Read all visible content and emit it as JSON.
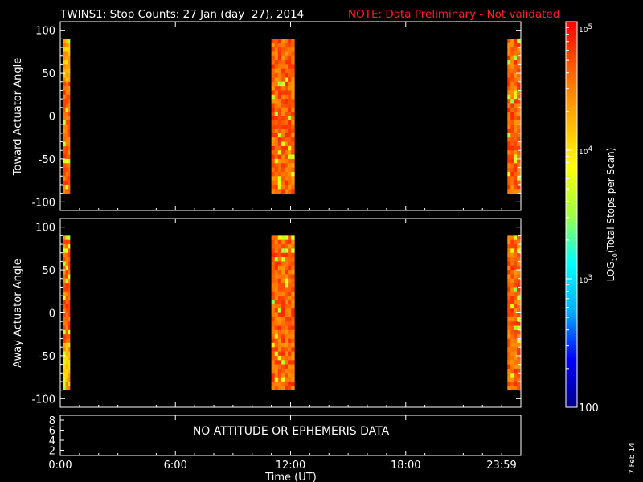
{
  "header": {
    "title": "TWINS1: Stop Counts: 27 Jan (day  27), 2014",
    "note": "NOTE: Data Preliminary - Not validated"
  },
  "side_date": "7 Feb 14",
  "message_panel": {
    "text": "NO ATTITUDE OR EPHEMERIS DATA",
    "y_ticks": [
      "8",
      "6",
      "4",
      "2"
    ]
  },
  "colors": {
    "note": "#ff2020",
    "background": "#000000",
    "axis": "#ffffff"
  },
  "colorbar": {
    "label": "LOG10(Total Stops per Scan)",
    "label_main": "LOG",
    "label_sub": "10",
    "label_rest": "(Total Stops per Scan)",
    "ticks": [
      {
        "value": 100,
        "text": "100"
      },
      {
        "value": 1000,
        "text": "10",
        "sup": "3"
      },
      {
        "value": 10000,
        "text": "10",
        "sup": "4"
      },
      {
        "value": 100000,
        "text": "10",
        "sup": "5"
      }
    ],
    "range": [
      100,
      100000
    ],
    "scale": "log",
    "colormap": [
      "#00008b",
      "#0000ff",
      "#00b0ff",
      "#00ffff",
      "#a0ff40",
      "#ffff00",
      "#ffb000",
      "#ff6000",
      "#ff0000"
    ]
  },
  "chart_data": [
    {
      "type": "heatmap",
      "ylabel": "Toward Actuator Angle",
      "ylim": [
        -110,
        110
      ],
      "xlim_hours": [
        0,
        24
      ],
      "y_ticks": [
        100,
        50,
        0,
        -50,
        -100
      ],
      "angle_range": [
        -90,
        90
      ],
      "data_blocks_ut": [
        [
          "0:00",
          "0:30"
        ],
        [
          "11:00",
          "12:30"
        ],
        [
          "23:30",
          "23:59"
        ]
      ],
      "dominant_log10_counts": 4.6
    },
    {
      "type": "heatmap",
      "ylabel": "Away Actuator Angle",
      "ylim": [
        -110,
        110
      ],
      "xlim_hours": [
        0,
        24
      ],
      "y_ticks": [
        100,
        50,
        0,
        -50,
        -100
      ],
      "angle_range": [
        -90,
        90
      ],
      "data_blocks_ut": [
        [
          "0:00",
          "0:30"
        ],
        [
          "11:00",
          "12:30"
        ],
        [
          "23:30",
          "23:59"
        ]
      ],
      "dominant_log10_counts": 4.6
    }
  ],
  "x_axis": {
    "label": "Time (UT)",
    "ticks": [
      {
        "hours": 0,
        "text": "0:00"
      },
      {
        "hours": 6,
        "text": "6:00"
      },
      {
        "hours": 12,
        "text": "12:00"
      },
      {
        "hours": 18,
        "text": "18:00"
      },
      {
        "hours": 24,
        "text": "23:59"
      }
    ]
  }
}
